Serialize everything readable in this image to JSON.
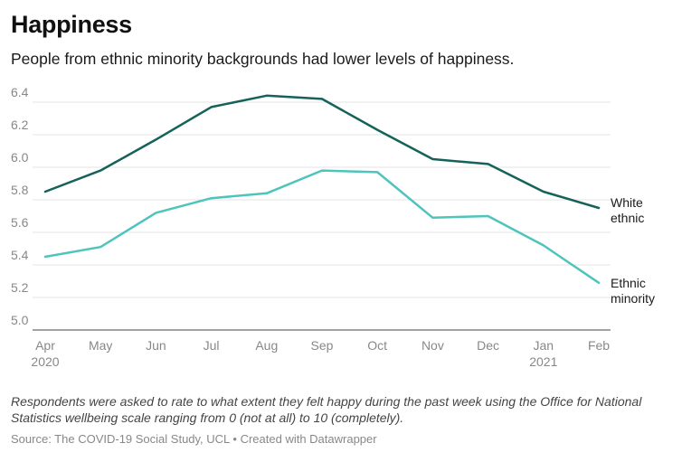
{
  "header": {
    "title": "Happiness",
    "subtitle": "People from ethnic minority backgrounds had lower levels of happiness."
  },
  "footer": {
    "note": "Respondents were asked to rate to what extent they felt happy during the past week using the Office for National Statistics wellbeing scale ranging from 0 (not at all) to 10 (completely).",
    "source": "Source: The COVID-19 Social Study, UCL • Created with Datawrapper"
  },
  "chart_data": {
    "type": "line",
    "title": "Happiness",
    "subtitle": "People from ethnic minority backgrounds had lower levels of happiness.",
    "xlabel": "",
    "ylabel": "",
    "categories": [
      "Apr",
      "May",
      "Jun",
      "Jul",
      "Aug",
      "Sep",
      "Oct",
      "Nov",
      "Dec",
      "Jan",
      "Feb"
    ],
    "year_labels": [
      {
        "category": "Apr",
        "label": "2020"
      },
      {
        "category": "Jan",
        "label": "2021"
      }
    ],
    "ylim": [
      5.0,
      6.5
    ],
    "yticks": [
      5.0,
      5.2,
      5.4,
      5.6,
      5.8,
      6.0,
      6.2,
      6.4
    ],
    "ytick_labels": [
      "5.0",
      "5.2",
      "5.4",
      "5.6",
      "5.8",
      "6.0",
      "6.2",
      "6.4"
    ],
    "grid": true,
    "series": [
      {
        "name": "White ethnic",
        "label_lines": [
          "White",
          "ethnic"
        ],
        "color": "#15625a",
        "values": [
          5.85,
          5.98,
          6.17,
          6.37,
          6.44,
          6.42,
          6.23,
          6.05,
          6.02,
          5.85,
          5.75
        ]
      },
      {
        "name": "Ethnic minority",
        "label_lines": [
          "Ethnic",
          "minority"
        ],
        "color": "#4ec4bc",
        "values": [
          5.45,
          5.51,
          5.72,
          5.81,
          5.84,
          5.98,
          5.97,
          5.69,
          5.7,
          5.52,
          5.29
        ]
      }
    ]
  }
}
